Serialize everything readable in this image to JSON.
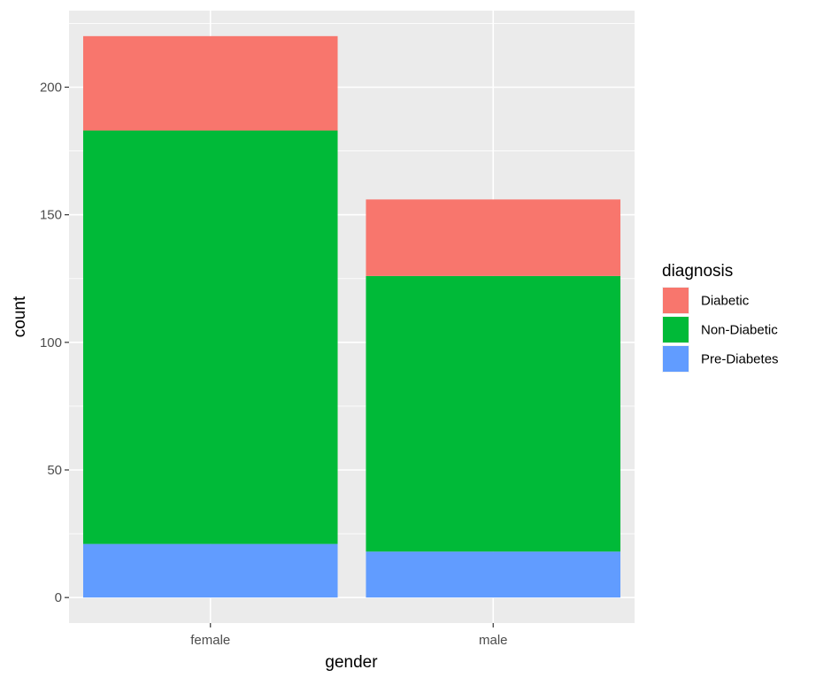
{
  "chart_data": {
    "type": "bar",
    "stacked": true,
    "categories": [
      "female",
      "male"
    ],
    "series": [
      {
        "name": "Diabetic",
        "color": "#F8766D",
        "values": [
          37,
          30
        ]
      },
      {
        "name": "Non-Diabetic",
        "color": "#00BA38",
        "values": [
          162,
          108
        ]
      },
      {
        "name": "Pre-Diabetes",
        "color": "#619CFF",
        "values": [
          21,
          18
        ]
      }
    ],
    "xlabel": "gender",
    "ylabel": "count",
    "ylim": [
      -10,
      230
    ],
    "yticks": [
      0,
      50,
      100,
      150,
      200
    ],
    "grid": true,
    "legend": {
      "title": "diagnosis",
      "placement": "right"
    },
    "panel_background": "#EBEBEB",
    "grid_color": "#FFFFFF"
  }
}
